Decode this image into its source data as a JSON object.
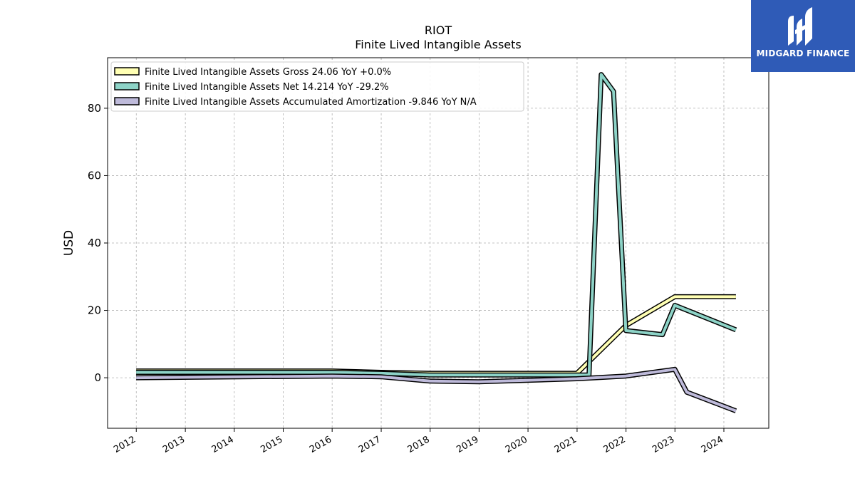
{
  "brand": {
    "name": "MIDGARD FINANCE",
    "logo_icon": "midgard-m-icon",
    "color": "#2f5bb7"
  },
  "chart_data": {
    "type": "line",
    "title": "RIOT",
    "subtitle": "Finite Lived Intangible Assets",
    "xlabel": "",
    "ylabel": "USD",
    "xlim": [
      "2011-06-01",
      "2024-12-01"
    ],
    "ylim": [
      -15,
      95
    ],
    "x_ticks": [
      "2012",
      "2013",
      "2014",
      "2015",
      "2016",
      "2017",
      "2018",
      "2019",
      "2020",
      "2021",
      "2022",
      "2023",
      "2024"
    ],
    "y_ticks": [
      0,
      20,
      40,
      60,
      80
    ],
    "grid": true,
    "legend_position": "top-left",
    "series": [
      {
        "name": "Finite Lived Intangible Assets Gross  24.06 YoY +0.0%",
        "color": "#ffffb3",
        "points": [
          [
            "2011-12-31",
            2.0
          ],
          [
            "2015-12-31",
            2.0
          ],
          [
            "2016-12-31",
            1.6
          ],
          [
            "2017-12-31",
            1.3
          ],
          [
            "2019-12-31",
            1.3
          ],
          [
            "2020-12-31",
            1.3
          ],
          [
            "2021-12-31",
            15.5
          ],
          [
            "2022-12-31",
            24.06
          ],
          [
            "2024-03-31",
            24.06
          ]
        ]
      },
      {
        "name": "Finite Lived Intangible Assets Net  14.214 YoY -29.2%",
        "color": "#8dd3c7",
        "points": [
          [
            "2011-12-31",
            1.6
          ],
          [
            "2015-12-31",
            1.6
          ],
          [
            "2016-12-31",
            1.3
          ],
          [
            "2017-12-31",
            0.8
          ],
          [
            "2019-12-31",
            0.8
          ],
          [
            "2020-12-31",
            0.8
          ],
          [
            "2021-03-31",
            0.8
          ],
          [
            "2021-06-30",
            90.0
          ],
          [
            "2021-09-30",
            85.0
          ],
          [
            "2021-12-31",
            14.0
          ],
          [
            "2022-09-30",
            12.8
          ],
          [
            "2022-12-31",
            21.5
          ],
          [
            "2024-03-31",
            14.214
          ]
        ]
      },
      {
        "name": "Finite Lived Intangible Assets Accumulated Amortization  -9.846 YoY N/A",
        "color": "#bebada",
        "points": [
          [
            "2011-12-31",
            0.0
          ],
          [
            "2015-12-31",
            0.5
          ],
          [
            "2016-12-31",
            0.3
          ],
          [
            "2017-12-31",
            -1.0
          ],
          [
            "2018-12-31",
            -1.2
          ],
          [
            "2020-12-31",
            -0.3
          ],
          [
            "2021-12-31",
            0.5
          ],
          [
            "2022-12-31",
            2.5
          ],
          [
            "2023-03-31",
            -4.3
          ],
          [
            "2024-03-31",
            -9.846
          ]
        ]
      }
    ]
  }
}
